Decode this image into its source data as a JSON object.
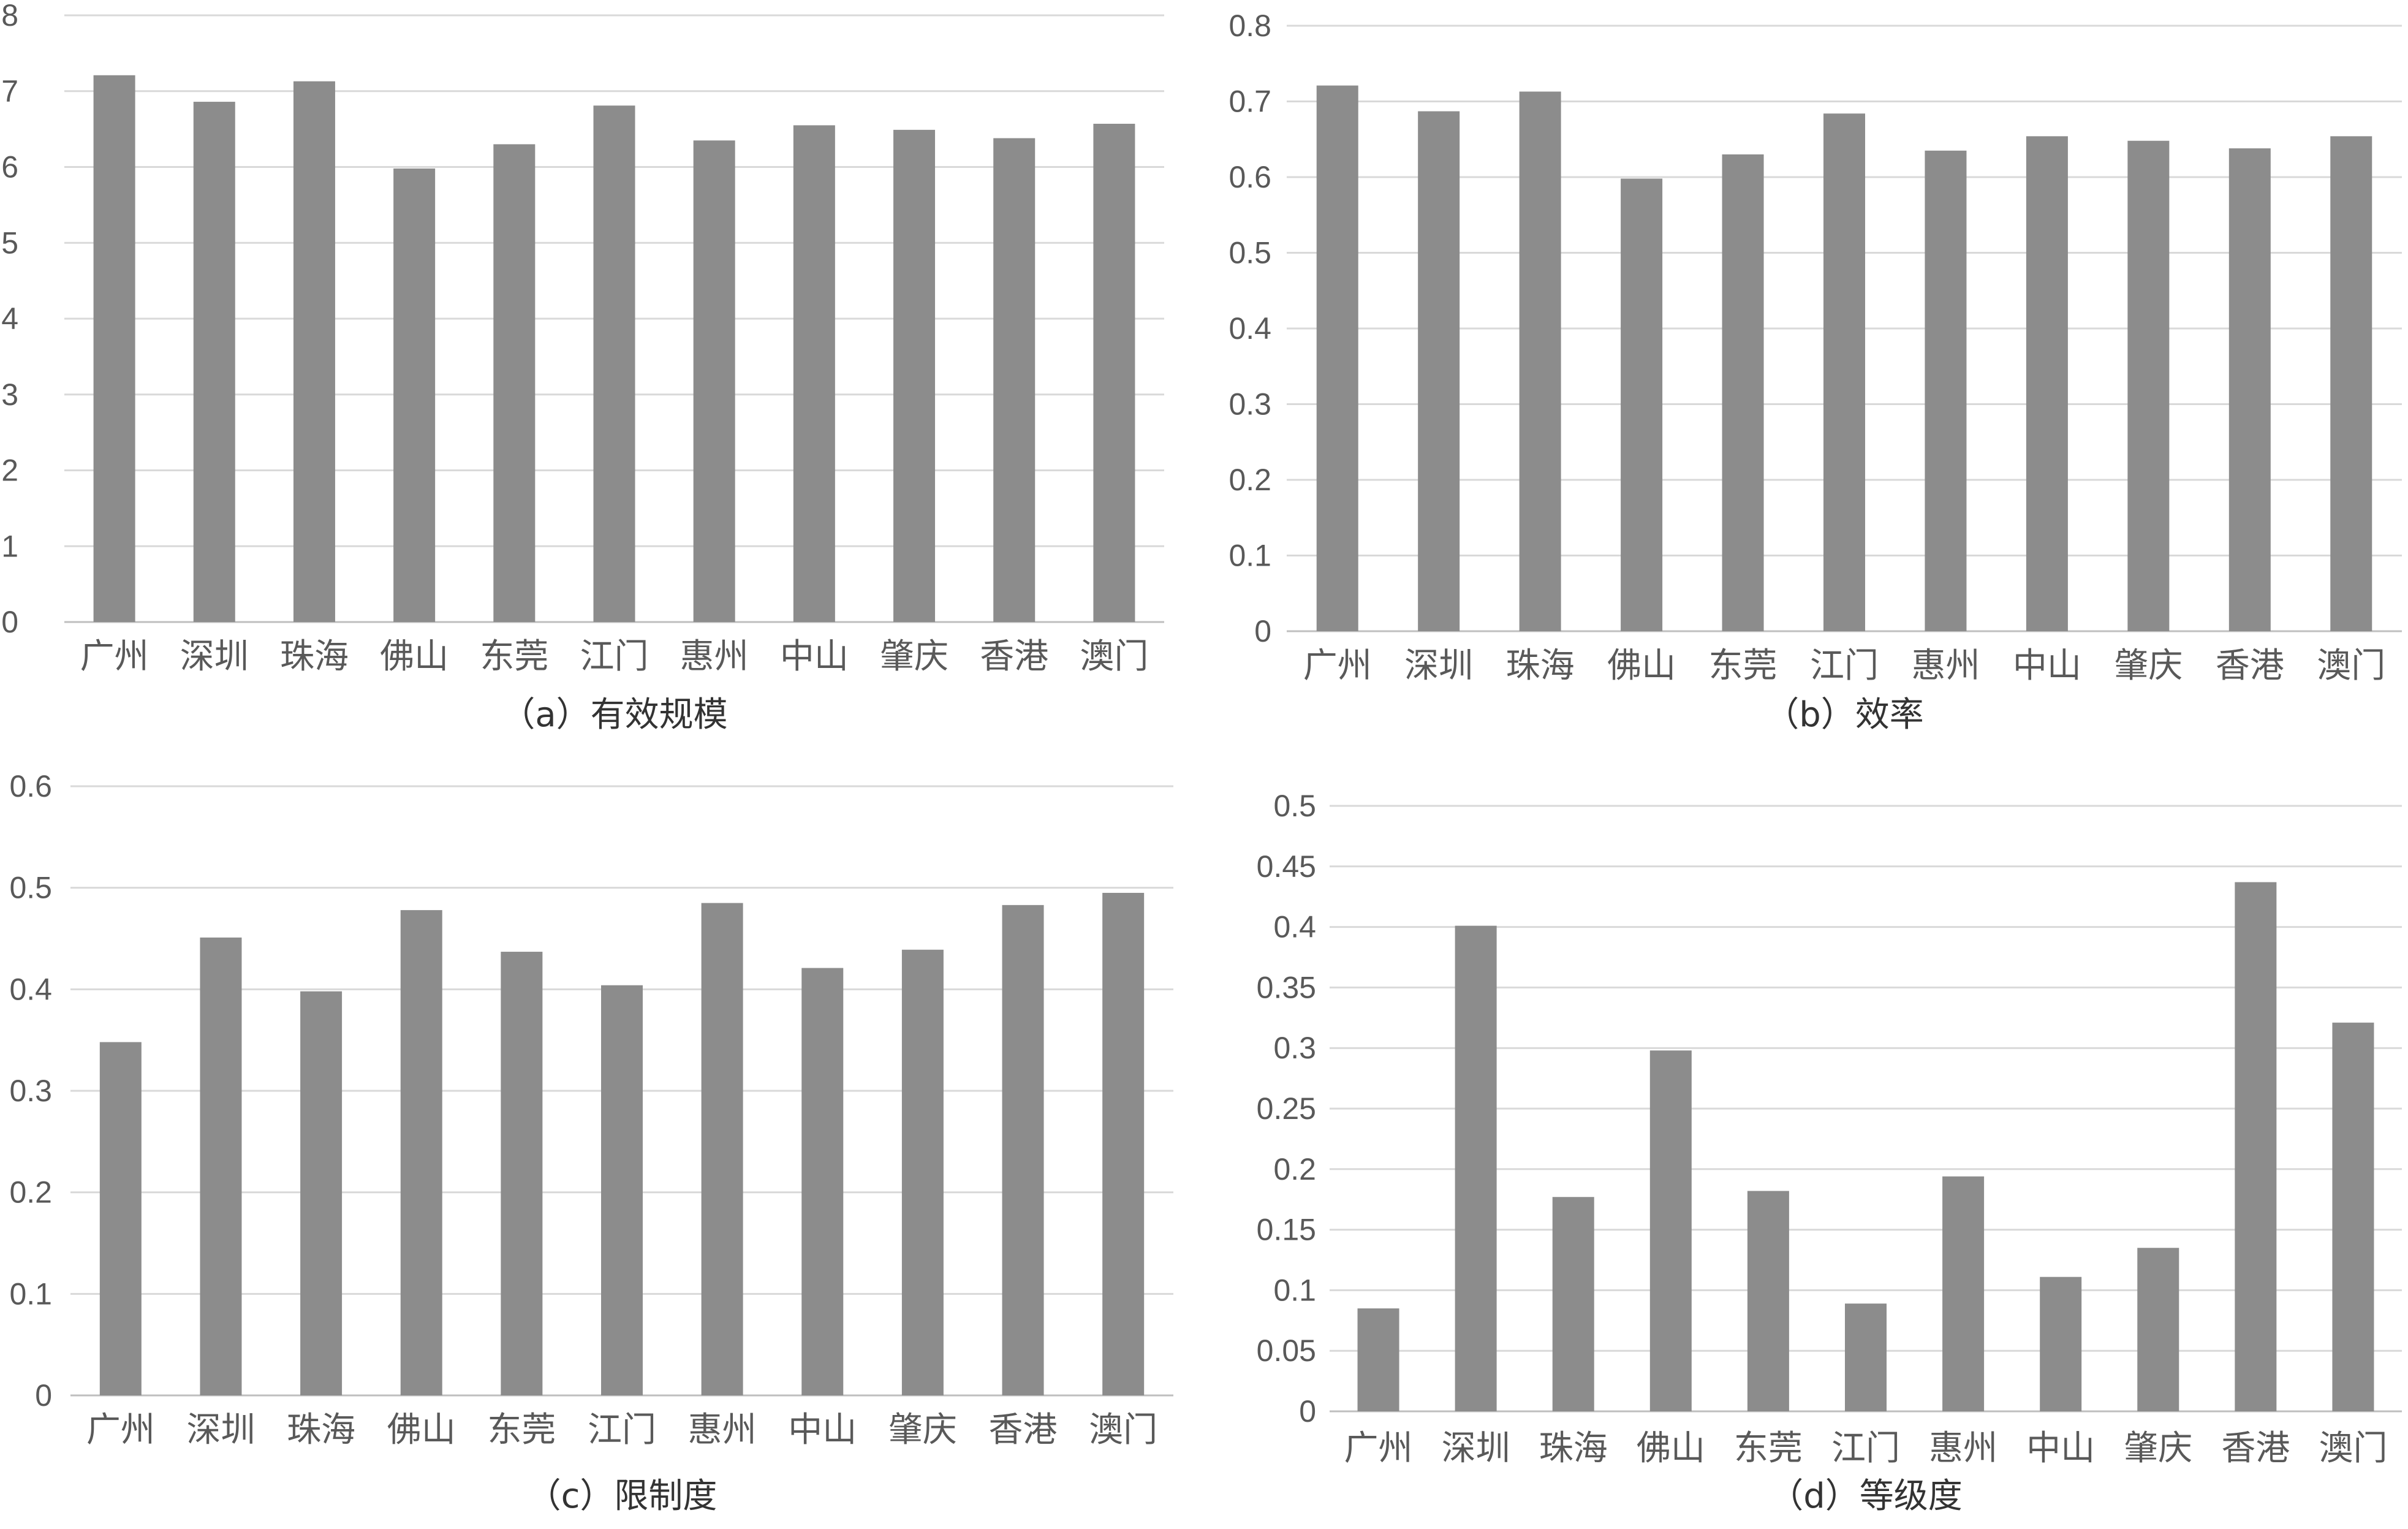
{
  "chart_data": [
    {
      "type": "bar",
      "caption": "（a）有效规模",
      "categories": [
        "广州",
        "深圳",
        "珠海",
        "佛山",
        "东莞",
        "江门",
        "惠州",
        "中山",
        "肇庆",
        "香港",
        "澳门"
      ],
      "values": [
        7.21,
        6.86,
        7.13,
        5.98,
        6.3,
        6.81,
        6.35,
        6.55,
        6.49,
        6.38,
        6.57
      ],
      "ylim": [
        0,
        8
      ],
      "yticks": [
        "0",
        "1",
        "2",
        "3",
        "4",
        "5",
        "6",
        "7",
        "8"
      ],
      "grid": true,
      "bar_color": "#8c8c8c"
    },
    {
      "type": "bar",
      "caption": "（b）效率",
      "categories": [
        "广州",
        "深圳",
        "珠海",
        "佛山",
        "东莞",
        "江门",
        "惠州",
        "中山",
        "肇庆",
        "香港",
        "澳门"
      ],
      "values": [
        0.721,
        0.687,
        0.713,
        0.598,
        0.63,
        0.684,
        0.635,
        0.654,
        0.648,
        0.638,
        0.654
      ],
      "ylim": [
        0,
        0.8
      ],
      "yticks": [
        "0",
        "0.1",
        "0.2",
        "0.3",
        "0.4",
        "0.5",
        "0.6",
        "0.7",
        "0.8"
      ],
      "grid": true,
      "bar_color": "#8c8c8c"
    },
    {
      "type": "bar",
      "caption": "（c）限制度",
      "categories": [
        "广州",
        "深圳",
        "珠海",
        "佛山",
        "东莞",
        "江门",
        "惠州",
        "中山",
        "肇庆",
        "香港",
        "澳门"
      ],
      "values": [
        0.348,
        0.451,
        0.398,
        0.478,
        0.437,
        0.404,
        0.485,
        0.421,
        0.439,
        0.483,
        0.495
      ],
      "ylim": [
        0,
        0.6
      ],
      "yticks": [
        "0",
        "0.1",
        "0.2",
        "0.3",
        "0.4",
        "0.5",
        "0.6"
      ],
      "grid": true,
      "bar_color": "#8c8c8c"
    },
    {
      "type": "bar",
      "caption": "（d）等级度",
      "categories": [
        "广州",
        "深圳",
        "珠海",
        "佛山",
        "东莞",
        "江门",
        "惠州",
        "中山",
        "肇庆",
        "香港",
        "澳门"
      ],
      "values": [
        0.085,
        0.401,
        0.177,
        0.298,
        0.182,
        0.089,
        0.194,
        0.111,
        0.135,
        0.437,
        0.321
      ],
      "ylim": [
        0,
        0.5
      ],
      "yticks": [
        "0",
        "0.05",
        "0.1",
        "0.15",
        "0.2",
        "0.25",
        "0.3",
        "0.35",
        "0.4",
        "0.45",
        "0.5"
      ],
      "grid": true,
      "bar_color": "#8c8c8c"
    }
  ]
}
